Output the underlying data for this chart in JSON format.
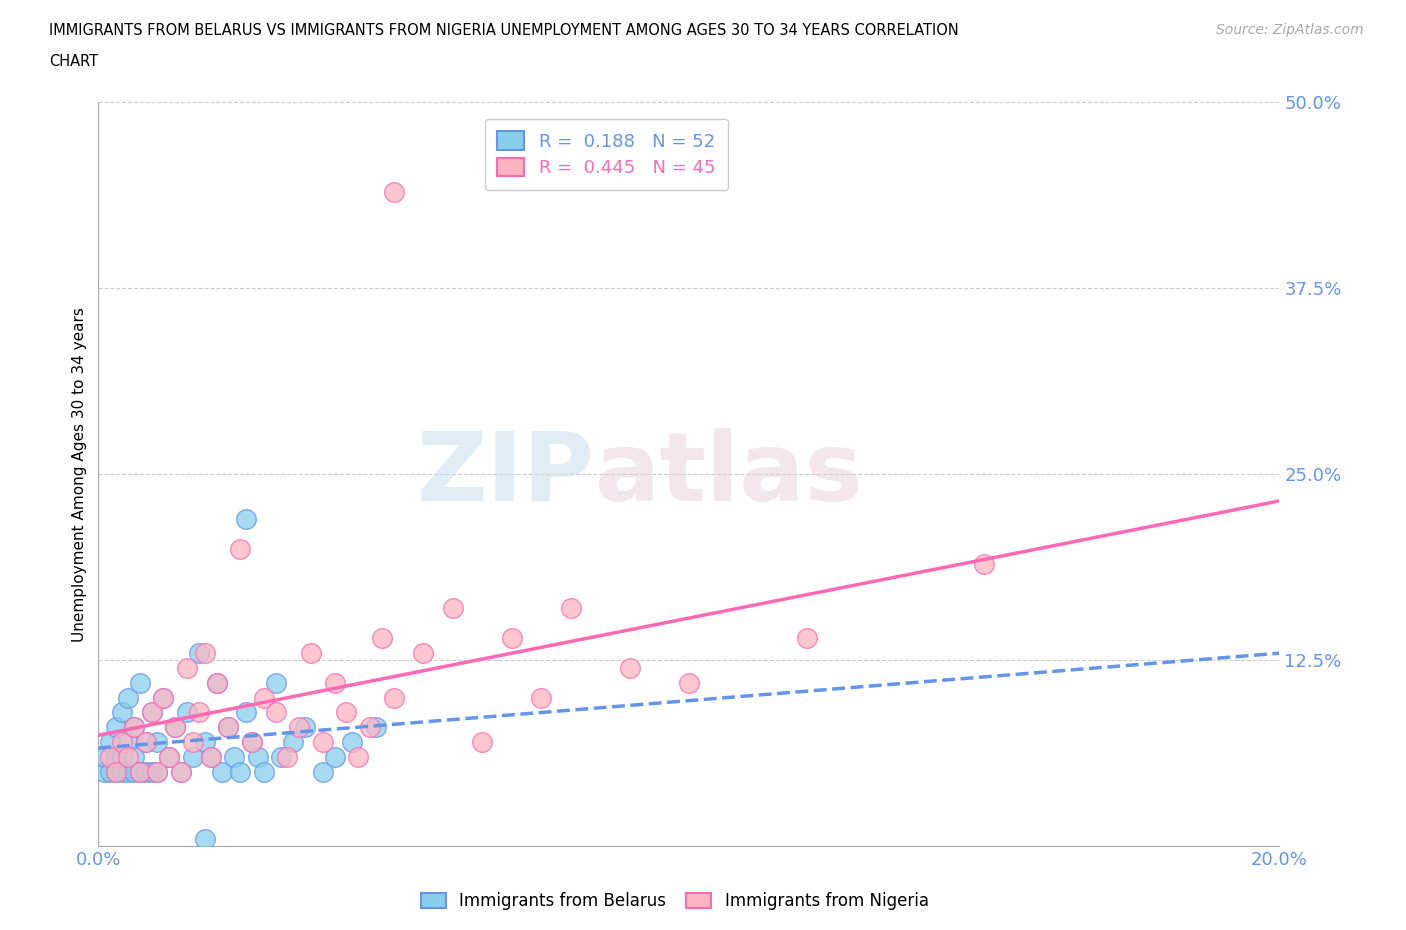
{
  "title_line1": "IMMIGRANTS FROM BELARUS VS IMMIGRANTS FROM NIGERIA UNEMPLOYMENT AMONG AGES 30 TO 34 YEARS CORRELATION",
  "title_line2": "CHART",
  "source_text": "Source: ZipAtlas.com",
  "ylabel": "Unemployment Among Ages 30 to 34 years",
  "watermark_zip": "ZIP",
  "watermark_atlas": "atlas",
  "xlim": [
    0.0,
    0.2
  ],
  "ylim": [
    0.0,
    0.5
  ],
  "xticks": [
    0.0,
    0.04,
    0.08,
    0.12,
    0.16,
    0.2
  ],
  "yticks": [
    0.0,
    0.125,
    0.25,
    0.375,
    0.5
  ],
  "ytick_labels": [
    "",
    "12.5%",
    "25.0%",
    "37.5%",
    "50.0%"
  ],
  "xtick_labels": [
    "0.0%",
    "",
    "",
    "",
    "",
    "20.0%"
  ],
  "legend_r1": "R =  0.188   N = 52",
  "legend_r2": "R =  0.445   N = 45",
  "color_belarus": "#87CEEB",
  "color_nigeria": "#FFB6C1",
  "color_belarus_edge": "#6495ED",
  "color_nigeria_edge": "#FF69B4",
  "color_belarus_line": "#6495ED",
  "color_nigeria_line": "#FF69B4",
  "color_tick_labels": "#6495ED",
  "belarus_x": [
    0.001,
    0.001,
    0.002,
    0.002,
    0.003,
    0.003,
    0.003,
    0.004,
    0.004,
    0.004,
    0.005,
    0.005,
    0.005,
    0.006,
    0.006,
    0.006,
    0.007,
    0.007,
    0.008,
    0.008,
    0.009,
    0.009,
    0.01,
    0.01,
    0.011,
    0.012,
    0.013,
    0.014,
    0.015,
    0.016,
    0.017,
    0.018,
    0.019,
    0.02,
    0.021,
    0.022,
    0.023,
    0.024,
    0.025,
    0.026,
    0.027,
    0.028,
    0.03,
    0.031,
    0.033,
    0.035,
    0.038,
    0.04,
    0.043,
    0.047,
    0.025,
    0.018
  ],
  "belarus_y": [
    0.05,
    0.06,
    0.05,
    0.07,
    0.05,
    0.06,
    0.08,
    0.05,
    0.06,
    0.09,
    0.05,
    0.07,
    0.1,
    0.05,
    0.06,
    0.08,
    0.05,
    0.11,
    0.05,
    0.07,
    0.05,
    0.09,
    0.05,
    0.07,
    0.1,
    0.06,
    0.08,
    0.05,
    0.09,
    0.06,
    0.13,
    0.07,
    0.06,
    0.11,
    0.05,
    0.08,
    0.06,
    0.05,
    0.09,
    0.07,
    0.06,
    0.05,
    0.11,
    0.06,
    0.07,
    0.08,
    0.05,
    0.06,
    0.07,
    0.08,
    0.22,
    0.005
  ],
  "nigeria_x": [
    0.002,
    0.003,
    0.004,
    0.005,
    0.006,
    0.007,
    0.008,
    0.009,
    0.01,
    0.011,
    0.012,
    0.013,
    0.014,
    0.015,
    0.016,
    0.017,
    0.018,
    0.019,
    0.02,
    0.022,
    0.024,
    0.026,
    0.028,
    0.03,
    0.032,
    0.034,
    0.036,
    0.038,
    0.04,
    0.042,
    0.044,
    0.046,
    0.048,
    0.05,
    0.055,
    0.06,
    0.065,
    0.07,
    0.075,
    0.08,
    0.09,
    0.1,
    0.12,
    0.15,
    0.05
  ],
  "nigeria_y": [
    0.06,
    0.05,
    0.07,
    0.06,
    0.08,
    0.05,
    0.07,
    0.09,
    0.05,
    0.1,
    0.06,
    0.08,
    0.05,
    0.12,
    0.07,
    0.09,
    0.13,
    0.06,
    0.11,
    0.08,
    0.2,
    0.07,
    0.1,
    0.09,
    0.06,
    0.08,
    0.13,
    0.07,
    0.11,
    0.09,
    0.06,
    0.08,
    0.14,
    0.1,
    0.13,
    0.16,
    0.07,
    0.14,
    0.1,
    0.16,
    0.12,
    0.11,
    0.14,
    0.19,
    0.44
  ]
}
